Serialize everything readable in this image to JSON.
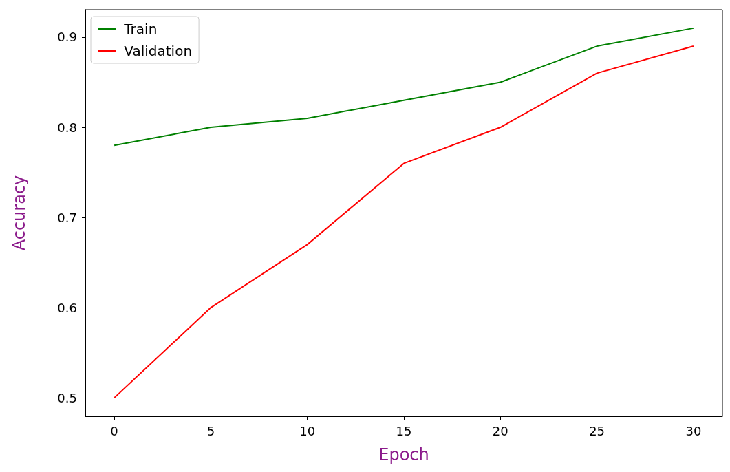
{
  "chart_data": {
    "type": "line",
    "xlabel": "Epoch",
    "ylabel": "Accuracy",
    "x": [
      0,
      5,
      10,
      15,
      20,
      25,
      30
    ],
    "series": [
      {
        "name": "Train",
        "color": "#008000",
        "values": [
          0.78,
          0.8,
          0.81,
          0.83,
          0.85,
          0.89,
          0.91
        ]
      },
      {
        "name": "Validation",
        "color": "#ff0000",
        "values": [
          0.5,
          0.6,
          0.67,
          0.76,
          0.8,
          0.86,
          0.89
        ]
      }
    ],
    "xlim": [
      -1.5,
      31.5
    ],
    "ylim": [
      0.4795,
      0.9305
    ],
    "xticks": [
      0,
      5,
      10,
      15,
      20,
      25,
      30
    ],
    "yticks": [
      0.5,
      0.6,
      0.7,
      0.8,
      0.9
    ],
    "grid": false,
    "legend": "top left",
    "line_style": "solid"
  }
}
